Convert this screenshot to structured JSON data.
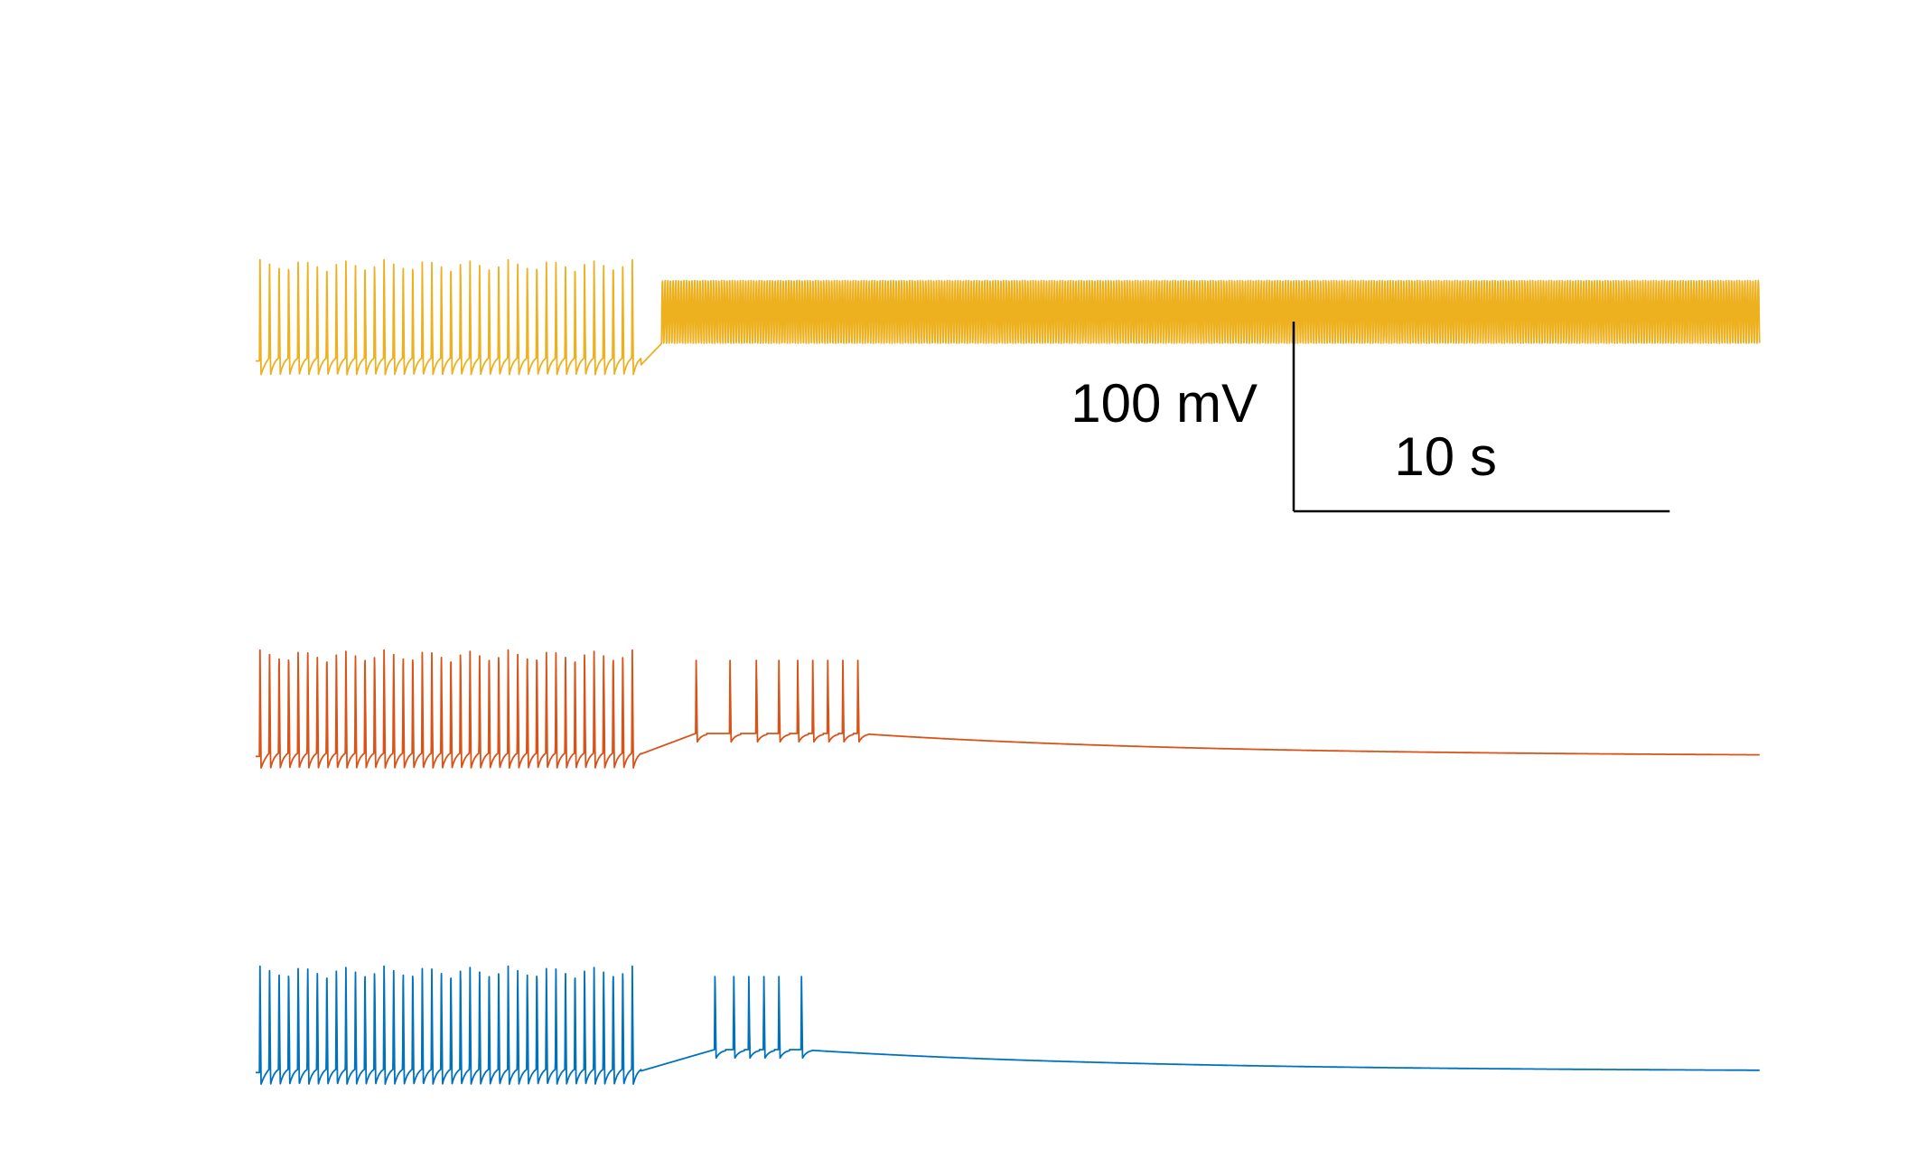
{
  "chart_data": {
    "type": "line",
    "title": "",
    "xlabel": "",
    "ylabel": "",
    "time_range_s": [
      0,
      40
    ],
    "scale_bar": {
      "voltage_value": 100,
      "voltage_label": "100 mV",
      "time_value": 10,
      "time_label": "10 s"
    },
    "series": [
      {
        "color": "#EDB120",
        "resting_mV": -62,
        "peak_mV": 35,
        "phase1": {
          "start_s": 0.1,
          "end_s": 10.0,
          "spike_count": 40,
          "trough_mV": -75
        },
        "phase2": {
          "start_s": 10.8,
          "end_s": 40.0,
          "frequency_hz": 14,
          "oscillation_mV": [
            -45,
            15
          ]
        }
      },
      {
        "color": "#D95319",
        "resting_mV": -67,
        "peak_mV": 35,
        "phase1": {
          "start_s": 0.1,
          "end_s": 10.0,
          "spike_count": 40,
          "trough_mV": -78
        },
        "recovery_spike_times_s": [
          11.7,
          12.6,
          13.3,
          13.9,
          14.4,
          14.8,
          15.2,
          15.6,
          16.0
        ],
        "final_mV": -67
      },
      {
        "color": "#0072BD",
        "resting_mV": -67,
        "peak_mV": 35,
        "phase1": {
          "start_s": 0.1,
          "end_s": 10.0,
          "spike_count": 40,
          "trough_mV": -78
        },
        "recovery_spike_times_s": [
          12.2,
          12.7,
          13.1,
          13.5,
          13.9,
          14.5
        ],
        "final_mV": -66
      }
    ]
  }
}
